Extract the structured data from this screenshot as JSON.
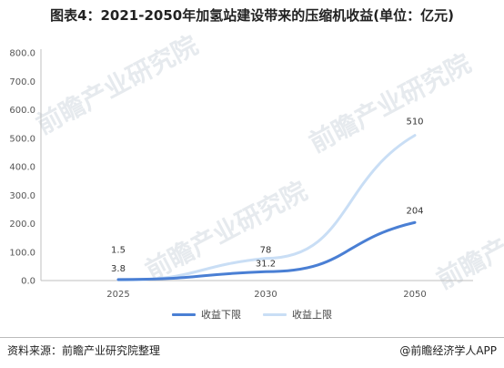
{
  "title": "图表4：2021-2050年加氢站建设带来的压缩机收益(单位：亿元)",
  "watermark_text": "前瞻产业研究院",
  "chart_data": {
    "type": "line",
    "x": [
      "2025",
      "2030",
      "2050"
    ],
    "ylim": [
      0,
      800
    ],
    "yticks": [
      "0.0",
      "100.0",
      "200.0",
      "300.0",
      "400.0",
      "500.0",
      "600.0",
      "700.0",
      "800.0"
    ],
    "grid": false,
    "legend_position": "bottom",
    "series": [
      {
        "name": "收益下限",
        "values": [
          3.8,
          31.2,
          204
        ],
        "labels": [
          "3.8",
          "31.2",
          "204"
        ],
        "color": "#4a7fd4"
      },
      {
        "name": "收益上限",
        "values": [
          1.5,
          78,
          510
        ],
        "labels": [
          "1.5",
          "78",
          "510"
        ],
        "color": "#c9def5"
      }
    ]
  },
  "footer": {
    "source": "资料来源：前瞻产业研究院整理",
    "credit": "@前瞻经济学人APP"
  }
}
